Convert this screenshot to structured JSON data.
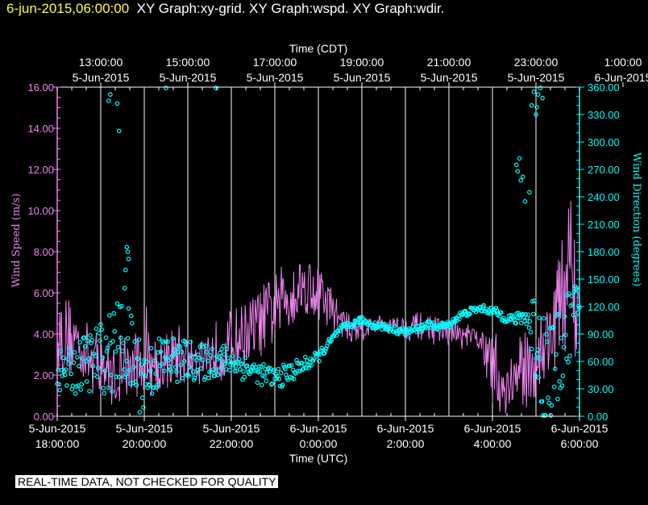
{
  "header": {
    "timestamp": "6-jun-2015,06:00:00",
    "titles": "XY Graph:xy-grid.  XY Graph:wspd.  XY Graph:wdir."
  },
  "disclaimer": "REAL-TIME DATA, NOT CHECKED FOR QUALITY",
  "colors": {
    "speed": "#ee82ee",
    "direction": "#00ffff",
    "grid": "#ffffff",
    "axis_text": "#ffffff"
  },
  "chart_data": {
    "type": "line",
    "top_axis": {
      "title": "Time (CDT)",
      "ticks": [
        {
          "x_hours": -5,
          "time": "13:00:00",
          "date": "5-Jun-2015"
        },
        {
          "x_hours": -3,
          "time": "15:00:00",
          "date": "5-Jun-2015"
        },
        {
          "x_hours": -1,
          "time": "17:00:00",
          "date": "5-Jun-2015"
        },
        {
          "x_hours": 1,
          "time": "19:00:00",
          "date": "5-Jun-2015"
        },
        {
          "x_hours": 3,
          "time": "21:00:00",
          "date": "5-Jun-2015"
        },
        {
          "x_hours": 5,
          "time": "23:00:00",
          "date": "5-Jun-2015"
        },
        {
          "x_hours": 7,
          "time": "1:00:00",
          "date": "6-Jun-2015"
        }
      ]
    },
    "bottom_axis": {
      "title": "Time (UTC)",
      "ticks": [
        {
          "x_hours": -6,
          "date": "5-Jun-2015",
          "time": "18:00:00"
        },
        {
          "x_hours": -4,
          "date": "5-Jun-2015",
          "time": "20:00:00"
        },
        {
          "x_hours": -2,
          "date": "5-Jun-2015",
          "time": "22:00:00"
        },
        {
          "x_hours": 0,
          "date": "6-Jun-2015",
          "time": "0:00:00"
        },
        {
          "x_hours": 2,
          "date": "6-Jun-2015",
          "time": "2:00:00"
        },
        {
          "x_hours": 4,
          "date": "6-Jun-2015",
          "time": "4:00:00"
        },
        {
          "x_hours": 6,
          "date": "6-Jun-2015",
          "time": "6:00:00"
        }
      ]
    },
    "xlim_hours": [
      -6,
      6
    ],
    "left_axis": {
      "label": "Wind Speed (m/s)",
      "ylim": [
        0,
        16
      ],
      "ticks": [
        "0.00",
        "2.00",
        "4.00",
        "6.00",
        "8.00",
        "10.00",
        "12.00",
        "14.00",
        "16.00"
      ]
    },
    "right_axis": {
      "label": "Wind Direction (degrees)",
      "ylim": [
        0,
        360
      ],
      "ticks": [
        "0.00",
        "30.00",
        "60.00",
        "90.00",
        "120.00",
        "150.00",
        "180.00",
        "210.00",
        "240.00",
        "270.00",
        "300.00",
        "330.00",
        "360.00"
      ]
    },
    "grid": true,
    "series": [
      {
        "type": "line",
        "axis": "left",
        "x_hours": [
          -6.0,
          -5.75,
          -5.5,
          -5.25,
          -5.0,
          -4.75,
          -4.5,
          -4.25,
          -4.0,
          -3.75,
          -3.5,
          -3.25,
          -3.0,
          -2.75,
          -2.5,
          -2.25,
          -2.0,
          -1.75,
          -1.5,
          -1.25,
          -1.0,
          -0.75,
          -0.5,
          -0.25,
          0.0,
          0.25,
          0.5,
          0.75,
          1.0,
          1.25,
          1.5,
          1.75,
          2.0,
          2.25,
          2.5,
          2.75,
          3.0,
          3.25,
          3.5,
          3.75,
          4.0,
          4.25,
          4.5,
          4.75,
          5.0,
          5.25,
          5.5,
          5.75,
          6.0
        ],
        "values": [
          4.0,
          3.8,
          3.6,
          2.8,
          2.6,
          2.0,
          1.8,
          2.5,
          2.6,
          2.6,
          2.7,
          3.0,
          2.8,
          2.8,
          3.0,
          3.3,
          3.6,
          3.9,
          4.3,
          4.7,
          5.2,
          5.8,
          6.2,
          6.4,
          6.0,
          5.4,
          4.7,
          4.2,
          4.3,
          4.4,
          4.5,
          4.4,
          4.3,
          4.4,
          4.4,
          4.2,
          4.1,
          3.9,
          3.8,
          3.7,
          2.0,
          1.3,
          1.8,
          2.3,
          2.8,
          3.6,
          5.0,
          7.0,
          5.0
        ],
        "amplitude_ms": [
          1.2,
          1.3,
          1.0,
          1.0,
          1.0,
          0.9,
          0.9,
          1.0,
          1.0,
          1.0,
          0.9,
          1.0,
          0.8,
          0.8,
          0.9,
          1.0,
          1.0,
          1.0,
          1.0,
          1.1,
          1.1,
          1.1,
          1.0,
          0.9,
          0.9,
          0.7,
          0.5,
          0.4,
          0.4,
          0.3,
          0.3,
          0.3,
          0.4,
          0.4,
          0.4,
          0.4,
          0.4,
          0.4,
          0.4,
          0.3,
          1.2,
          0.8,
          1.1,
          1.2,
          1.3,
          1.3,
          1.6,
          2.3,
          1.5
        ]
      },
      {
        "type": "scatter",
        "axis": "right",
        "x_hours": [
          -6.0,
          -5.75,
          -5.5,
          -5.25,
          -5.0,
          -4.75,
          -4.5,
          -4.25,
          -4.0,
          -3.75,
          -3.5,
          -3.25,
          -3.0,
          -2.75,
          -2.5,
          -2.25,
          -2.0,
          -1.75,
          -1.5,
          -1.25,
          -1.0,
          -0.75,
          -0.5,
          -0.25,
          0.0,
          0.25,
          0.5,
          0.75,
          1.0,
          1.25,
          1.5,
          1.75,
          2.0,
          2.25,
          2.5,
          2.75,
          3.0,
          3.25,
          3.5,
          3.75,
          4.0,
          4.25,
          4.5,
          4.75,
          5.0,
          5.25,
          5.5,
          5.75,
          6.0
        ],
        "values": [
          50,
          48,
          55,
          60,
          65,
          70,
          85,
          60,
          40,
          55,
          65,
          60,
          62,
          58,
          60,
          62,
          60,
          55,
          50,
          45,
          42,
          45,
          52,
          58,
          65,
          80,
          95,
          100,
          105,
          100,
          98,
          95,
          92,
          95,
          100,
          98,
          100,
          110,
          115,
          118,
          115,
          110,
          105,
          110,
          90,
          40,
          60,
          100,
          125
        ],
        "jitter_deg": [
          22,
          25,
          30,
          35,
          40,
          45,
          50,
          50,
          40,
          30,
          30,
          25,
          22,
          20,
          20,
          18,
          15,
          15,
          12,
          12,
          12,
          12,
          10,
          8,
          6,
          5,
          4,
          4,
          4,
          4,
          4,
          4,
          4,
          4,
          4,
          4,
          4,
          4,
          4,
          4,
          5,
          6,
          6,
          8,
          60,
          80,
          50,
          40,
          25
        ]
      },
      {
        "type": "scatter",
        "axis": "right",
        "outliers": true,
        "x_hours": [
          -4.82,
          -4.78,
          -4.62,
          -4.58,
          -4.45,
          -4.43,
          -4.4,
          -4.38,
          -4.36,
          -3.5,
          -2.35,
          4.55,
          4.58,
          4.62,
          4.65,
          4.7,
          4.75,
          4.85,
          4.9,
          4.95,
          5.0,
          5.02,
          5.05,
          5.1,
          5.15
        ],
        "values": [
          345,
          352,
          342,
          312,
          140,
          160,
          185,
          180,
          172,
          360,
          362,
          275,
          268,
          282,
          258,
          262,
          235,
          245,
          340,
          355,
          330,
          338,
          352,
          360,
          348
        ]
      }
    ]
  }
}
